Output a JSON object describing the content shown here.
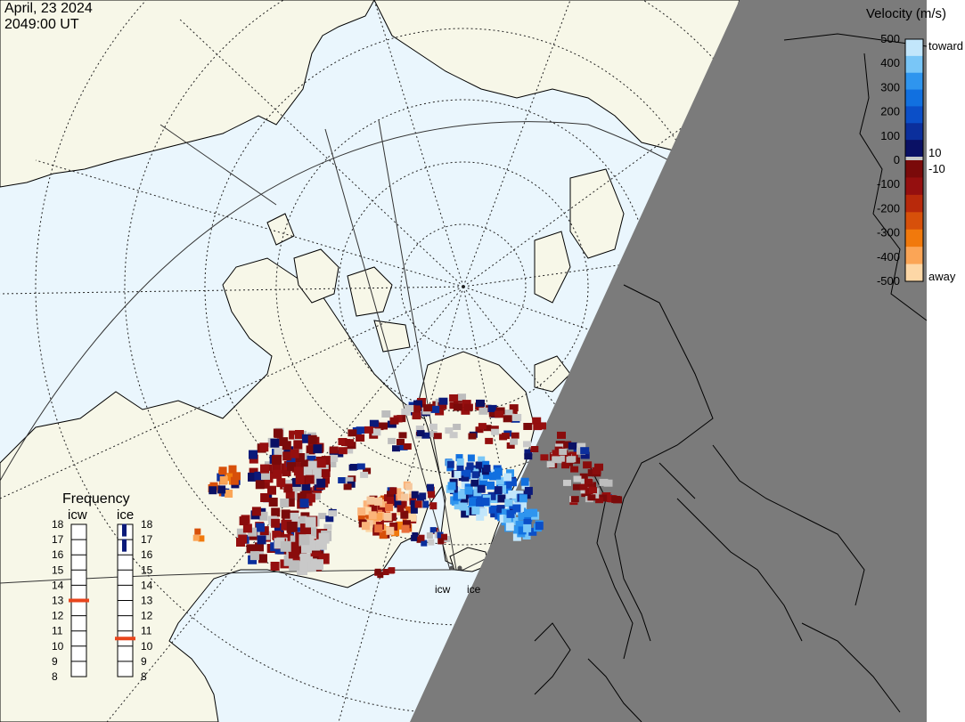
{
  "header": {
    "date": "April, 23 2024",
    "time": "2049:00 UT"
  },
  "colorbar": {
    "title": "Velocity (m/s)",
    "ticks": [
      "500",
      "400",
      "300",
      "200",
      "100",
      "0",
      "-100",
      "-200",
      "-300",
      "-400",
      "-500"
    ],
    "ten_pos": "10",
    "ten_neg": "-10",
    "toward_label": "toward",
    "away_label": "away",
    "toward_colors": [
      "#0a1064",
      "#0b2f9c",
      "#0b4fc8",
      "#1170e0",
      "#2f95ee",
      "#79c6f7",
      "#c2e6fb"
    ],
    "away_colors": [
      "#7a0a0a",
      "#950f0f",
      "#b8290b",
      "#d7500a",
      "#f1790c",
      "#fba556",
      "#fdd7a6"
    ]
  },
  "frequency_panel": {
    "title": "Frequency",
    "channels": [
      {
        "name": "icw",
        "frequency_mhz": 13
      },
      {
        "name": "ice",
        "frequency_mhz": 10.5
      }
    ],
    "scale": [
      "18",
      "17",
      "16",
      "15",
      "14",
      "13",
      "12",
      "11",
      "10",
      "9",
      "8"
    ],
    "ice_extra_marks": [
      16.5,
      17.5
    ]
  },
  "radar_sites": [
    {
      "name": "icw",
      "label": "icw"
    },
    {
      "name": "ice",
      "label": "ice"
    }
  ],
  "map": {
    "ocean_color": "#eaf6fd",
    "land_color": "#f7f7e8",
    "night_color": "#7b7b7b"
  }
}
